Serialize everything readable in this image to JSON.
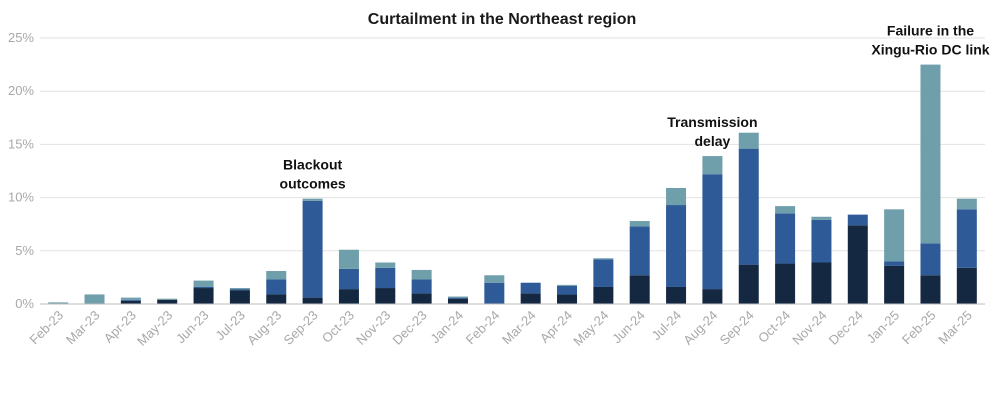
{
  "chart_data": {
    "type": "bar",
    "stacked": true,
    "title": "Curtailment in the Northeast region",
    "xlabel": "",
    "ylabel": "",
    "ylim": [
      0,
      25
    ],
    "y_ticks": [
      "0%",
      "5%",
      "10%",
      "15%",
      "20%",
      "25%"
    ],
    "grid": true,
    "legend": "none",
    "categories": [
      "Feb-23",
      "Mar-23",
      "Apr-23",
      "May-23",
      "Jun-23",
      "Jul-23",
      "Aug-23",
      "Sep-23",
      "Oct-23",
      "Nov-23",
      "Dec-23",
      "Jan-24",
      "Feb-24",
      "Mar-24",
      "Apr-24",
      "May-24",
      "Jun-24",
      "Jul-24",
      "Aug-24",
      "Sep-24",
      "Oct-24",
      "Nov-24",
      "Dec-24",
      "Jan-25",
      "Feb-25",
      "Mar-25"
    ],
    "series": [
      {
        "color": "#142842",
        "values": [
          0.0,
          0.0,
          0.3,
          0.4,
          1.5,
          1.3,
          0.9,
          0.6,
          1.4,
          1.5,
          1.0,
          0.5,
          0.0,
          1.0,
          0.9,
          1.6,
          2.7,
          1.6,
          1.4,
          3.7,
          3.8,
          3.9,
          7.4,
          3.6,
          2.7,
          3.4
        ]
      },
      {
        "color": "#2e5b98",
        "values": [
          0.0,
          0.0,
          0.1,
          0.0,
          0.1,
          0.1,
          1.4,
          9.1,
          1.9,
          1.9,
          1.3,
          0.1,
          2.0,
          1.0,
          0.8,
          2.6,
          4.6,
          7.7,
          10.8,
          10.9,
          4.7,
          4.0,
          1.0,
          0.4,
          3.0,
          5.5
        ]
      },
      {
        "color": "#6f9fab",
        "values": [
          0.15,
          0.9,
          0.2,
          0.1,
          0.6,
          0.1,
          0.8,
          0.2,
          1.8,
          0.5,
          0.9,
          0.1,
          0.7,
          0.0,
          0.1,
          0.1,
          0.5,
          1.6,
          1.7,
          1.5,
          0.7,
          0.3,
          0.0,
          4.9,
          16.8,
          1.0
        ]
      }
    ],
    "annotations": [
      {
        "lines": [
          "Blackout",
          "outcomes"
        ],
        "category": "Sep-23"
      },
      {
        "lines": [
          "Transmission",
          "delay"
        ],
        "category": "Aug-24"
      },
      {
        "lines": [
          "Failure in the",
          "Xingu-Rio DC link"
        ],
        "category": "Feb-25"
      }
    ]
  }
}
